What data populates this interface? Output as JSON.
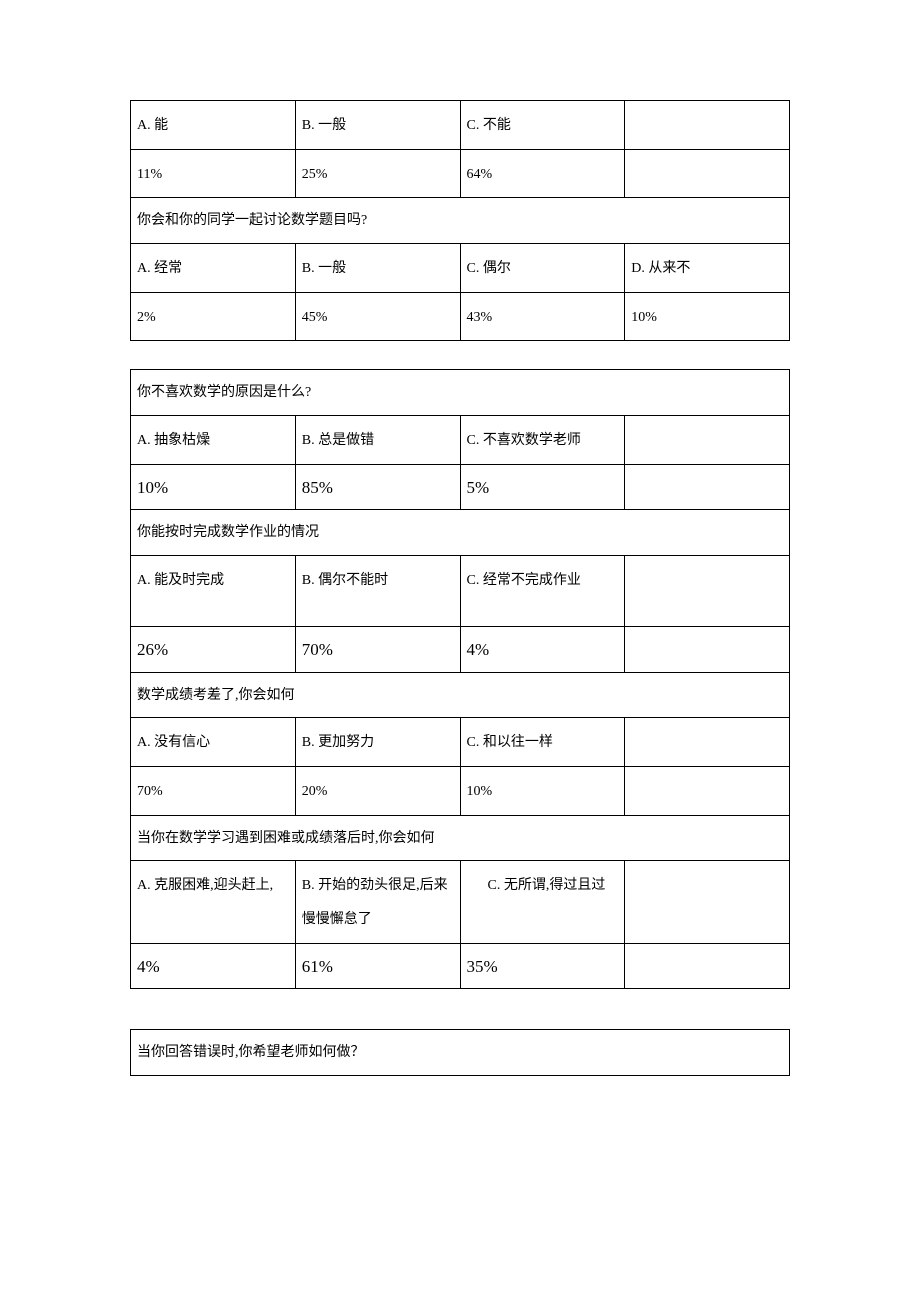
{
  "table1": {
    "row1": {
      "a": "A. 能",
      "b": "B. 一般",
      "c": "C. 不能",
      "d": ""
    },
    "row2": {
      "a": "11%",
      "b": "25%",
      "c": "64%",
      "d": ""
    },
    "q2": "你会和你的同学一起讨论数学题目吗?",
    "row3": {
      "a": "A. 经常",
      "b": "B. 一般",
      "c": "C. 偶尔",
      "d": "D. 从来不"
    },
    "row4": {
      "a": "2%",
      "b": "45%",
      "c": "43%",
      "d": "10%"
    }
  },
  "table2": {
    "q1": "你不喜欢数学的原因是什么?",
    "row1": {
      "a": "A. 抽象枯燥",
      "b": "B. 总是做错",
      "c": "C. 不喜欢数学老师",
      "d": ""
    },
    "row2": {
      "a": "10%",
      "b": "85%",
      "c": "5%",
      "d": ""
    },
    "q2": "你能按时完成数学作业的情况",
    "row3": {
      "a": "A. 能及时完成",
      "b": "B. 偶尔不能时",
      "c": "C. 经常不完成作业",
      "d": ""
    },
    "row4": {
      "a": "26%",
      "b": "70%",
      "c": "4%",
      "d": ""
    },
    "q3": "数学成绩考差了,你会如何",
    "row5": {
      "a": "A. 没有信心",
      "b": "B. 更加努力",
      "c": "C. 和以往一样",
      "d": ""
    },
    "row6": {
      "a": "70%",
      "b": "20%",
      "c": "10%",
      "d": ""
    },
    "q4": "当你在数学学习遇到困难或成绩落后时,你会如何",
    "row7": {
      "a": "A.  克服困难,迎头赶上,",
      "b": "B. 开始的劲头很足,后来慢慢懈怠了",
      "c": "      C. 无所谓,得过且过",
      "d": ""
    },
    "row8": {
      "a": "4%",
      "b": "61%",
      "c": "35%",
      "d": ""
    }
  },
  "table3": {
    "q1": "当你回答错误时,你希望老师如何做？"
  }
}
